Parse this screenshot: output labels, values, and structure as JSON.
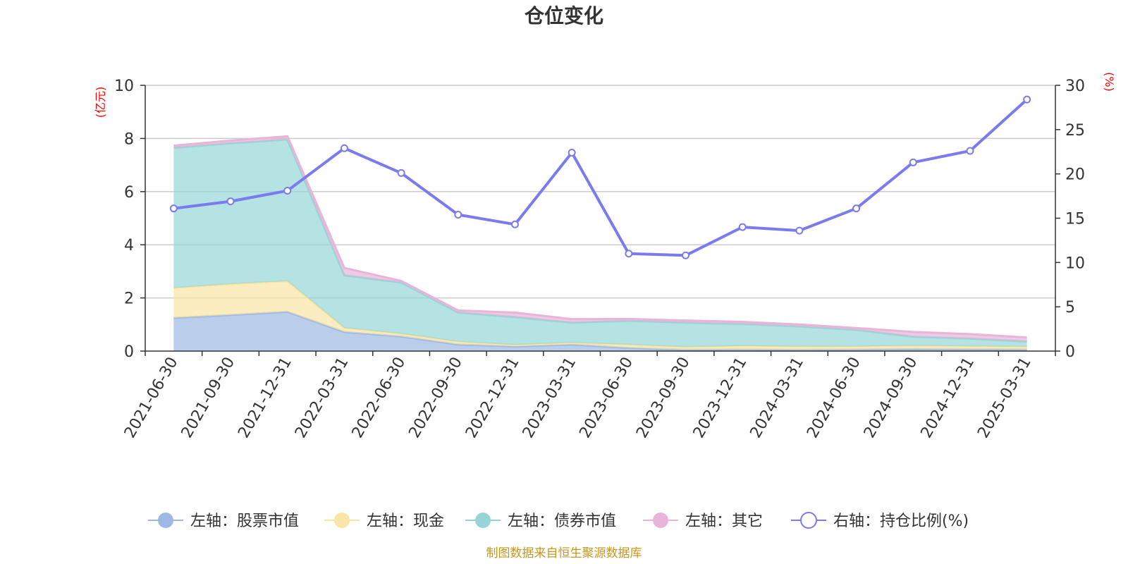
{
  "chart_data": {
    "type": "area",
    "title": "仓位变化",
    "left_axis_unit": "(亿元)",
    "right_axis_unit": "(%)",
    "categories": [
      "2021-06-30",
      "2021-09-30",
      "2021-12-31",
      "2022-03-31",
      "2022-06-30",
      "2022-09-30",
      "2022-12-31",
      "2023-03-31",
      "2023-06-30",
      "2023-09-30",
      "2023-12-31",
      "2024-03-31",
      "2024-06-30",
      "2024-09-30",
      "2024-12-31",
      "2025-03-31"
    ],
    "y_left": {
      "range": [
        0,
        10
      ],
      "ticks": [
        "0",
        "2",
        "4",
        "6",
        "8",
        "10"
      ]
    },
    "y_right": {
      "range": [
        0,
        30
      ],
      "ticks": [
        "0",
        "5",
        "10",
        "15",
        "20",
        "25",
        "30"
      ]
    },
    "grid": true,
    "legend_position": "bottom",
    "stacked": true,
    "series": [
      {
        "name": "左轴：股票市值",
        "axis": "left",
        "kind": "area",
        "color": "#9db8e3",
        "values": [
          1.25,
          1.36,
          1.48,
          0.72,
          0.55,
          0.25,
          0.18,
          0.25,
          0.12,
          0.05,
          0.06,
          0.05,
          0.06,
          0.08,
          0.07,
          0.06
        ]
      },
      {
        "name": "左轴：现金",
        "axis": "left",
        "kind": "area",
        "color": "#f9e5a5",
        "values": [
          1.12,
          1.16,
          1.15,
          0.15,
          0.1,
          0.1,
          0.05,
          0.06,
          0.12,
          0.1,
          0.13,
          0.12,
          0.11,
          0.12,
          0.11,
          0.1
        ]
      },
      {
        "name": "左轴：债券市值",
        "axis": "left",
        "kind": "area",
        "color": "#96d5d5",
        "values": [
          5.28,
          5.3,
          5.33,
          1.98,
          1.93,
          1.1,
          1.05,
          0.76,
          0.9,
          0.92,
          0.83,
          0.76,
          0.63,
          0.34,
          0.29,
          0.2
        ]
      },
      {
        "name": "左轴：其它",
        "axis": "left",
        "kind": "area",
        "color": "#e8b4d8",
        "values": [
          0.08,
          0.1,
          0.12,
          0.28,
          0.06,
          0.08,
          0.17,
          0.13,
          0.07,
          0.08,
          0.08,
          0.07,
          0.07,
          0.18,
          0.17,
          0.15
        ]
      },
      {
        "name": "右轴：持仓比例(%)",
        "axis": "right",
        "kind": "line",
        "color": "#7b7bf0",
        "values": [
          16.1,
          16.9,
          18.1,
          22.9,
          20.1,
          15.4,
          14.3,
          22.4,
          11.0,
          10.8,
          14.0,
          13.6,
          16.1,
          21.3,
          22.6,
          28.4
        ]
      }
    ]
  },
  "source_note": "制图数据来自恒生聚源数据库"
}
